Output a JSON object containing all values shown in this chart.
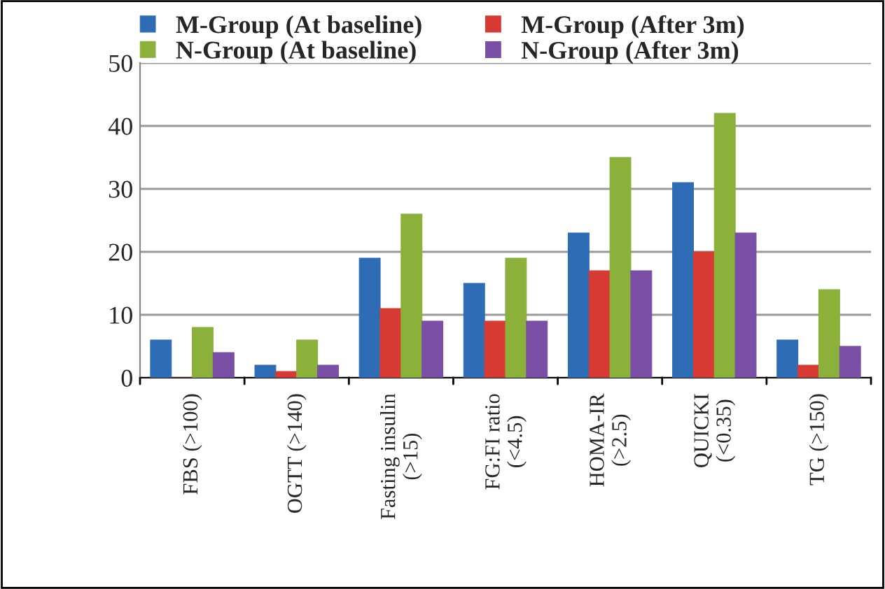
{
  "chart_data": {
    "type": "bar",
    "categories": [
      "FBS (>100)",
      "OGTT (>140)",
      "Fasting insulin\n(>15)",
      "FG:FI ratio\n(<4.5)",
      "HOMA-IR\n(>2.5)",
      "QUICKI\n(<0.35)",
      "TG (>150)"
    ],
    "series": [
      {
        "name": "M-Group (At baseline)",
        "color": "#2e6db6",
        "values": [
          6,
          2,
          19,
          15,
          23,
          31,
          6
        ]
      },
      {
        "name": "M-Group (After 3m)",
        "color": "#d63a32",
        "values": [
          0,
          1,
          11,
          9,
          17,
          20,
          2
        ]
      },
      {
        "name": "N-Group (At baseline)",
        "color": "#8bb13a",
        "values": [
          8,
          6,
          26,
          19,
          35,
          42,
          14
        ]
      },
      {
        "name": "N-Group (After 3m)",
        "color": "#7b4fa6",
        "values": [
          4,
          2,
          9,
          9,
          17,
          23,
          5
        ]
      }
    ],
    "ylim": [
      0,
      50
    ],
    "yticks": [
      0,
      10,
      20,
      30,
      40,
      50
    ],
    "grid": "y",
    "legend": "top"
  }
}
